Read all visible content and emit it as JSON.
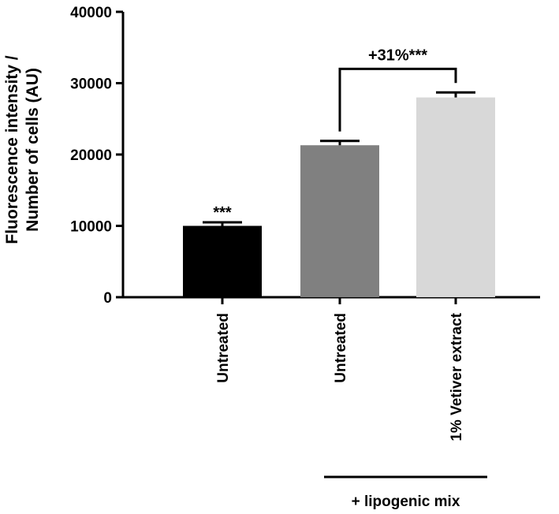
{
  "chart_data": {
    "type": "bar",
    "ylabel_lines": [
      "Fluorescence intensity /",
      "Number of cells (AU)"
    ],
    "xlabel": "",
    "ylim": [
      0,
      40000
    ],
    "yticks": [
      0,
      10000,
      20000,
      30000,
      40000
    ],
    "ytick_labels": [
      "0",
      "10000",
      "20000",
      "30000",
      "40000"
    ],
    "categories": [
      "Untreated",
      "Untreated",
      "1% Vetiver extract"
    ],
    "values": [
      10000,
      21300,
      28000
    ],
    "error_upper": [
      10500,
      21900,
      28700
    ],
    "bar_colors": [
      "#000000",
      "#808080",
      "#d8d8d8"
    ],
    "bar_annotations": [
      "***",
      "",
      ""
    ],
    "comparison": {
      "from": 1,
      "to": 2,
      "label": "+31%***"
    },
    "group": {
      "label": "+ lipogenic mix",
      "categories": [
        1,
        2
      ]
    },
    "grid": false,
    "legend": "none"
  }
}
